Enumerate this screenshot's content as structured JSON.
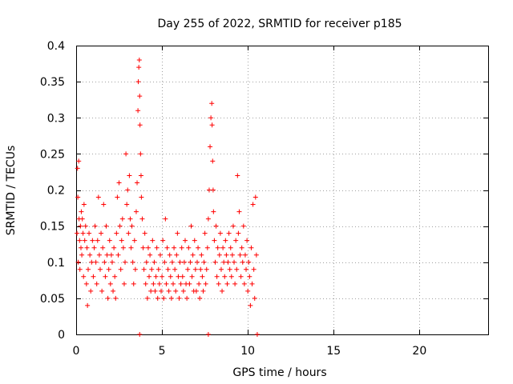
{
  "chart_data": {
    "type": "scatter",
    "title": "Day 255 of 2022, SRMTID for receiver p185",
    "xlabel": "GPS time / hours",
    "ylabel": "SRMTID / TECUs",
    "xlim": [
      0,
      24
    ],
    "ylim": [
      0,
      0.4
    ],
    "xticks": [
      0,
      5,
      10,
      15,
      20
    ],
    "xtick_labels": [
      "0",
      "5",
      "10",
      "15",
      "20"
    ],
    "yticks": [
      0,
      0.05,
      0.1,
      0.15,
      0.2,
      0.25,
      0.3,
      0.35,
      0.4
    ],
    "ytick_labels": [
      "0",
      "0.05",
      "0.1",
      "0.15",
      "0.2",
      "0.25",
      "0.3",
      "0.35",
      "0.4"
    ],
    "grid": true,
    "marker": "plus",
    "color": "#ff0000",
    "series": [
      {
        "name": "p185",
        "points": [
          [
            0.05,
            0.14
          ],
          [
            0.08,
            0.23
          ],
          [
            0.1,
            0.19
          ],
          [
            0.12,
            0.1
          ],
          [
            0.15,
            0.24
          ],
          [
            0.17,
            0.16
          ],
          [
            0.2,
            0.13
          ],
          [
            0.22,
            0.09
          ],
          [
            0.25,
            0.15
          ],
          [
            0.28,
            0.12
          ],
          [
            0.3,
            0.17
          ],
          [
            0.33,
            0.11
          ],
          [
            0.36,
            0.16
          ],
          [
            0.4,
            0.14
          ],
          [
            0.43,
            0.08
          ],
          [
            0.46,
            0.18
          ],
          [
            0.5,
            0.13
          ],
          [
            0.55,
            0.15
          ],
          [
            0.6,
            0.07
          ],
          [
            0.63,
            0.12
          ],
          [
            0.66,
            0.04
          ],
          [
            0.7,
            0.09
          ],
          [
            0.75,
            0.14
          ],
          [
            0.8,
            0.11
          ],
          [
            0.85,
            0.06
          ],
          [
            0.9,
            0.1
          ],
          [
            0.95,
            0.13
          ],
          [
            1.0,
            0.08
          ],
          [
            1.05,
            0.12
          ],
          [
            1.1,
            0.15
          ],
          [
            1.15,
            0.1
          ],
          [
            1.2,
            0.07
          ],
          [
            1.25,
            0.13
          ],
          [
            1.3,
            0.19
          ],
          [
            1.35,
            0.11
          ],
          [
            1.4,
            0.09
          ],
          [
            1.45,
            0.14
          ],
          [
            1.5,
            0.06
          ],
          [
            1.55,
            0.12
          ],
          [
            1.6,
            0.18
          ],
          [
            1.65,
            0.1
          ],
          [
            1.7,
            0.08
          ],
          [
            1.75,
            0.15
          ],
          [
            1.8,
            0.11
          ],
          [
            1.85,
            0.05
          ],
          [
            1.9,
            0.09
          ],
          [
            1.95,
            0.13
          ],
          [
            2.0,
            0.07
          ],
          [
            2.05,
            0.11
          ],
          [
            2.1,
            0.1
          ],
          [
            2.15,
            0.06
          ],
          [
            2.2,
            0.12
          ],
          [
            2.25,
            0.08
          ],
          [
            2.3,
            0.05
          ],
          [
            2.35,
            0.14
          ],
          [
            2.4,
            0.19
          ],
          [
            2.45,
            0.11
          ],
          [
            2.5,
            0.21
          ],
          [
            2.55,
            0.15
          ],
          [
            2.6,
            0.09
          ],
          [
            2.65,
            0.13
          ],
          [
            2.7,
            0.16
          ],
          [
            2.75,
            0.12
          ],
          [
            2.8,
            0.07
          ],
          [
            2.85,
            0.1
          ],
          [
            2.9,
            0.25
          ],
          [
            2.95,
            0.18
          ],
          [
            3.0,
            0.2
          ],
          [
            3.05,
            0.14
          ],
          [
            3.1,
            0.22
          ],
          [
            3.15,
            0.16
          ],
          [
            3.2,
            0.12
          ],
          [
            3.25,
            0.15
          ],
          [
            3.3,
            0.1
          ],
          [
            3.35,
            0.07
          ],
          [
            3.4,
            0.13
          ],
          [
            3.45,
            0.09
          ],
          [
            3.5,
            0.17
          ],
          [
            3.55,
            0.21
          ],
          [
            3.6,
            0.31
          ],
          [
            3.62,
            0.35
          ],
          [
            3.65,
            0.37
          ],
          [
            3.68,
            0.38
          ],
          [
            3.7,
            0.33
          ],
          [
            3.72,
            0.29
          ],
          [
            3.75,
            0.25
          ],
          [
            3.78,
            0.22
          ],
          [
            3.8,
            0.19
          ],
          [
            3.85,
            0.16
          ],
          [
            3.9,
            0.12
          ],
          [
            3.95,
            0.09
          ],
          [
            4.0,
            0.14
          ],
          [
            4.05,
            0.07
          ],
          [
            4.1,
            0.1
          ],
          [
            4.15,
            0.05
          ],
          [
            4.2,
            0.12
          ],
          [
            4.25,
            0.08
          ],
          [
            4.3,
            0.11
          ],
          [
            4.35,
            0.06
          ],
          [
            4.4,
            0.09
          ],
          [
            4.45,
            0.13
          ],
          [
            4.5,
            0.07
          ],
          [
            4.55,
            0.1
          ],
          [
            4.6,
            0.06
          ],
          [
            4.65,
            0.08
          ],
          [
            4.7,
            0.12
          ],
          [
            4.75,
            0.05
          ],
          [
            4.8,
            0.09
          ],
          [
            4.85,
            0.07
          ],
          [
            4.9,
            0.11
          ],
          [
            4.95,
            0.06
          ],
          [
            5.0,
            0.08
          ],
          [
            5.05,
            0.13
          ],
          [
            5.1,
            0.05
          ],
          [
            5.15,
            0.1
          ],
          [
            5.2,
            0.16
          ],
          [
            5.25,
            0.07
          ],
          [
            5.3,
            0.12
          ],
          [
            5.35,
            0.09
          ],
          [
            5.4,
            0.06
          ],
          [
            5.45,
            0.11
          ],
          [
            5.5,
            0.08
          ],
          [
            5.55,
            0.05
          ],
          [
            5.6,
            0.1
          ],
          [
            5.65,
            0.07
          ],
          [
            5.7,
            0.12
          ],
          [
            5.75,
            0.09
          ],
          [
            5.8,
            0.06
          ],
          [
            5.85,
            0.11
          ],
          [
            5.9,
            0.14
          ],
          [
            5.95,
            0.08
          ],
          [
            6.0,
            0.05
          ],
          [
            6.05,
            0.1
          ],
          [
            6.1,
            0.07
          ],
          [
            6.15,
            0.12
          ],
          [
            6.2,
            0.08
          ],
          [
            6.25,
            0.06
          ],
          [
            6.3,
            0.1
          ],
          [
            6.35,
            0.13
          ],
          [
            6.4,
            0.07
          ],
          [
            6.45,
            0.05
          ],
          [
            6.5,
            0.09
          ],
          [
            6.55,
            0.12
          ],
          [
            6.6,
            0.07
          ],
          [
            6.65,
            0.1
          ],
          [
            6.7,
            0.15
          ],
          [
            6.75,
            0.08
          ],
          [
            6.8,
            0.11
          ],
          [
            6.85,
            0.06
          ],
          [
            6.9,
            0.13
          ],
          [
            6.95,
            0.09
          ],
          [
            7.0,
            0.06
          ],
          [
            7.05,
            0.1
          ],
          [
            7.1,
            0.12
          ],
          [
            7.15,
            0.07
          ],
          [
            7.2,
            0.05
          ],
          [
            7.25,
            0.09
          ],
          [
            7.3,
            0.11
          ],
          [
            7.35,
            0.08
          ],
          [
            7.4,
            0.06
          ],
          [
            7.45,
            0.1
          ],
          [
            7.5,
            0.14
          ],
          [
            7.55,
            0.07
          ],
          [
            7.6,
            0.09
          ],
          [
            7.65,
            0.12
          ],
          [
            7.7,
            0.16
          ],
          [
            7.75,
            0.2
          ],
          [
            7.8,
            0.26
          ],
          [
            7.85,
            0.3
          ],
          [
            7.9,
            0.32
          ],
          [
            7.92,
            0.29
          ],
          [
            7.95,
            0.24
          ],
          [
            7.98,
            0.2
          ],
          [
            8.0,
            0.17
          ],
          [
            8.05,
            0.13
          ],
          [
            8.1,
            0.1
          ],
          [
            8.15,
            0.15
          ],
          [
            8.2,
            0.08
          ],
          [
            8.25,
            0.12
          ],
          [
            8.3,
            0.07
          ],
          [
            8.35,
            0.11
          ],
          [
            8.4,
            0.14
          ],
          [
            8.45,
            0.09
          ],
          [
            8.5,
            0.06
          ],
          [
            8.55,
            0.12
          ],
          [
            8.6,
            0.1
          ],
          [
            8.65,
            0.08
          ],
          [
            8.7,
            0.13
          ],
          [
            8.75,
            0.11
          ],
          [
            8.8,
            0.07
          ],
          [
            8.85,
            0.1
          ],
          [
            8.9,
            0.14
          ],
          [
            8.95,
            0.09
          ],
          [
            9.0,
            0.12
          ],
          [
            9.05,
            0.08
          ],
          [
            9.1,
            0.11
          ],
          [
            9.15,
            0.15
          ],
          [
            9.2,
            0.1
          ],
          [
            9.25,
            0.07
          ],
          [
            9.3,
            0.13
          ],
          [
            9.35,
            0.09
          ],
          [
            9.4,
            0.22
          ],
          [
            9.45,
            0.14
          ],
          [
            9.5,
            0.17
          ],
          [
            9.55,
            0.11
          ],
          [
            9.6,
            0.08
          ],
          [
            9.65,
            0.12
          ],
          [
            9.7,
            0.1
          ],
          [
            9.75,
            0.15
          ],
          [
            9.8,
            0.07
          ],
          [
            9.85,
            0.11
          ],
          [
            9.9,
            0.09
          ],
          [
            9.95,
            0.13
          ],
          [
            10.0,
            0.06
          ],
          [
            10.05,
            0.1
          ],
          [
            10.1,
            0.08
          ],
          [
            10.15,
            0.04
          ],
          [
            10.2,
            0.12
          ],
          [
            10.25,
            0.07
          ],
          [
            10.3,
            0.18
          ],
          [
            10.35,
            0.09
          ],
          [
            10.4,
            0.05
          ],
          [
            10.45,
            0.19
          ],
          [
            10.5,
            0.11
          ],
          [
            3.7,
            0.0
          ],
          [
            7.7,
            0.0
          ],
          [
            10.55,
            0.0
          ]
        ]
      }
    ]
  }
}
